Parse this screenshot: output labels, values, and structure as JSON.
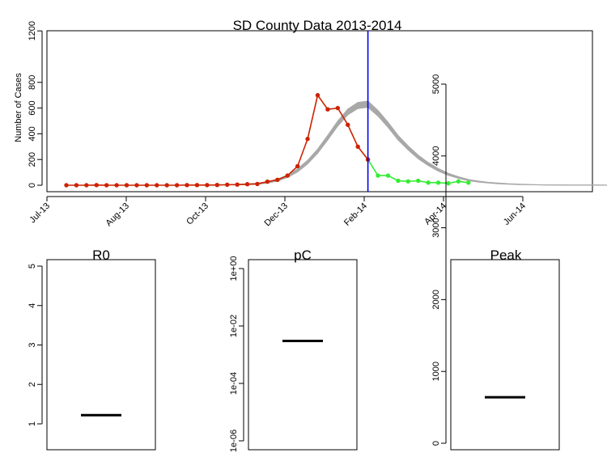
{
  "chart_data": [
    {
      "type": "line",
      "title": "SD County Data 2013-2014",
      "xlabel": "",
      "ylabel": "Number of Cases",
      "x_tick_labels": [
        "Jul-13",
        "Aug-13",
        "Oct-13",
        "Dec-13",
        "Feb-14",
        "Apr-14",
        "Jun-14"
      ],
      "y_ticks": [
        0,
        200,
        400,
        600,
        800,
        1200
      ],
      "ylim": [
        0,
        1200
      ],
      "x_step_label": "weekly",
      "vertical_line_week": 30,
      "colors": {
        "observed_fit": "#cc2200",
        "observed_future": "#33ee33",
        "model_band": "#a8a8a8",
        "vline": "#0000ee"
      },
      "series": [
        {
          "role": "observed_fit",
          "week_start": 0,
          "values": [
            0,
            0,
            0,
            1,
            0,
            0,
            0,
            0,
            0,
            0,
            0,
            0,
            1,
            1,
            1,
            2,
            4,
            5,
            8,
            10,
            28,
            42,
            75,
            148,
            360,
            700,
            590,
            600,
            470,
            300,
            200
          ]
        },
        {
          "role": "observed_future",
          "week_start": 30,
          "values": [
            200,
            75,
            75,
            35,
            30,
            35,
            20,
            20,
            15,
            30,
            20
          ]
        },
        {
          "role": "model_band_mid",
          "week_start": 17,
          "values": [
            5,
            8,
            12,
            22,
            40,
            70,
            115,
            180,
            265,
            370,
            480,
            570,
            620,
            630,
            560,
            470,
            370,
            290,
            220,
            165,
            120,
            85,
            60,
            40,
            28,
            20,
            14,
            10,
            7,
            5,
            3,
            2,
            2,
            1,
            1,
            1,
            1,
            0,
            0,
            0,
            0,
            0,
            0
          ]
        },
        {
          "role": "model_band_halfwidth",
          "week_start": 17,
          "values": [
            2,
            3,
            4,
            6,
            8,
            10,
            12,
            14,
            16,
            18,
            20,
            22,
            24,
            24,
            22,
            20,
            18,
            16,
            14,
            12,
            10,
            8,
            6,
            5,
            4,
            3,
            3,
            2,
            2,
            1,
            1,
            1,
            1,
            1,
            1,
            1,
            1,
            1,
            1,
            1,
            1,
            1,
            1
          ]
        }
      ]
    },
    {
      "type": "boxplot",
      "title": "R0",
      "y_ticks": [
        1,
        2,
        3,
        4,
        5
      ],
      "ylim": [
        0.8,
        5.15
      ],
      "median": 1.22
    },
    {
      "type": "boxplot",
      "title": "pC",
      "scale": "log",
      "y_ticks": [
        "1e+00",
        "1e-02",
        "1e-04",
        "1e-06"
      ],
      "ylim": [
        1e-06,
        1
      ],
      "median": 0.003
    },
    {
      "type": "boxplot",
      "title": "Peak",
      "y_ticks": [
        0,
        1000,
        2000,
        3000,
        4000,
        5000
      ],
      "ylim": [
        0,
        5200
      ],
      "median": 640
    }
  ]
}
